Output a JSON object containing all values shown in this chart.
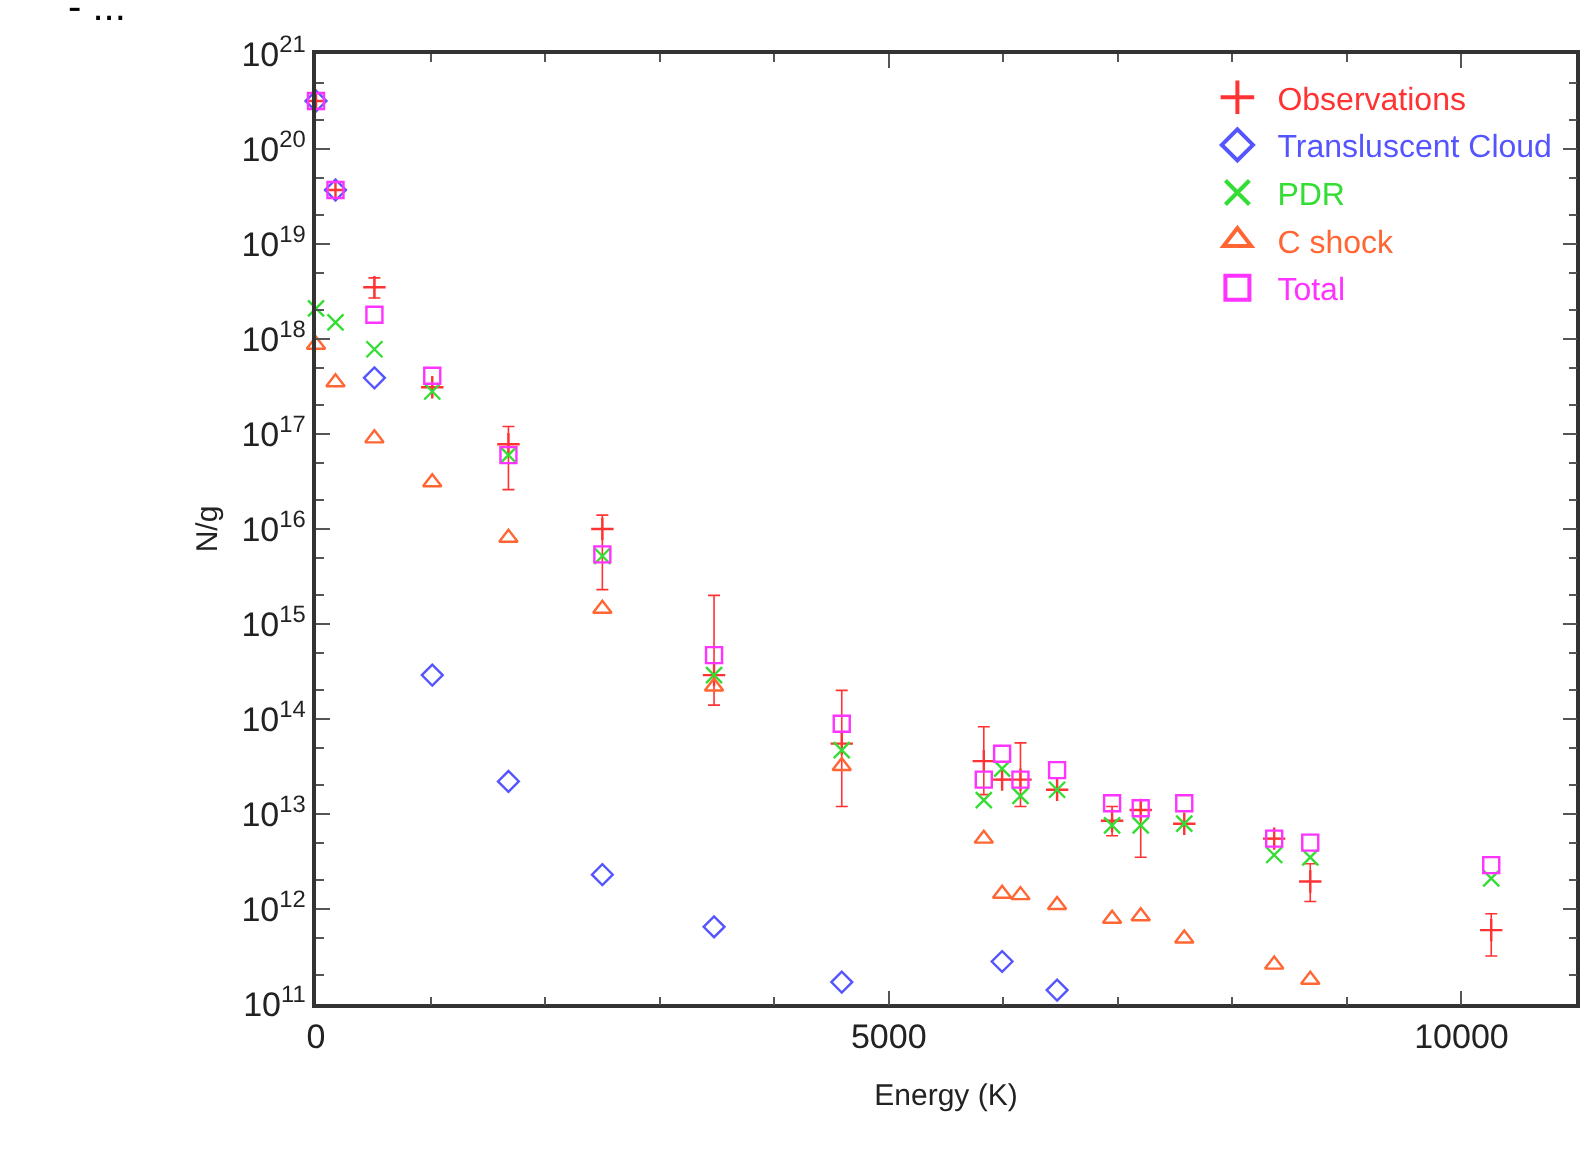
{
  "chart_data": {
    "type": "scatter",
    "xlabel": "Energy (K)",
    "ylabel": "N/g",
    "x": [
      0,
      170,
      510,
      1015,
      1680,
      2500,
      3475,
      4590,
      5830,
      5990,
      6150,
      6470,
      6950,
      7200,
      7580,
      8365,
      8680,
      10260
    ],
    "series": [
      {
        "name": "Observations",
        "color": "#ff3333",
        "marker": "cross",
        "values": [
          3.2e+20,
          3.7e+19,
          3.5e+18,
          3.1e+17,
          7.8e+16,
          1e+16,
          290000000000000.0,
          55000000000000.0,
          36000000000000.0,
          23000000000000.0,
          23000000000000.0,
          18000000000000.0,
          8500000000000.0,
          11000000000000.0,
          7900000000000.0,
          5500000000000.0,
          1950000000000.0,
          600000000000.0
        ],
        "errors": [
          null,
          null,
          [
            2.7e+18,
            4.4e+18
          ],
          null,
          [
            2.6e+16,
            1.2e+17
          ],
          [
            2300000000000000.0,
            1.4e+16
          ],
          [
            140000000000000.0,
            2000000000000000.0
          ],
          [
            12000000000000.0,
            200000000000000.0
          ],
          [
            16000000000000.0,
            83000000000000.0
          ],
          null,
          [
            12000000000000.0,
            56000000000000.0
          ],
          null,
          [
            5900000000000.0,
            12000000000000.0
          ],
          [
            3500000000000.0,
            14000000000000.0
          ],
          null,
          null,
          [
            1200000000000.0,
            3000000000000.0
          ],
          [
            320000000000.0,
            890000000000.0
          ]
        ]
      },
      {
        "name": "Transluscent Cloud",
        "color": "#5555ff",
        "marker": "diamond",
        "values": [
          3.2e+20,
          3.7e+19,
          3.9e+17,
          290000000000000.0,
          22000000000000.0,
          2300000000000.0,
          650000000000.0,
          170000000000.0,
          null,
          280000000000.0,
          null,
          140000000000.0,
          null,
          null,
          null,
          null,
          null,
          null
        ]
      },
      {
        "name": "PDR",
        "color": "#33dd33",
        "marker": "cross_x",
        "values": [
          2.1e+18,
          1.5e+18,
          7.8e+17,
          2.8e+17,
          6e+16,
          5200000000000000.0,
          290000000000000.0,
          47000000000000.0,
          14000000000000.0,
          30000000000000.0,
          15500000000000.0,
          18000000000000.0,
          7600000000000.0,
          7600000000000.0,
          7900000000000.0,
          3700000000000.0,
          3500000000000.0,
          2100000000000.0
        ]
      },
      {
        "name": "C shock",
        "color": "#ff6633",
        "marker": "triangle",
        "values": [
          8.7e+17,
          3.5e+17,
          9e+16,
          3.1e+16,
          8100000000000000.0,
          1450000000000000.0,
          220000000000000.0,
          32000000000000.0,
          5500000000000.0,
          1450000000000.0,
          1400000000000.0,
          1100000000000.0,
          790000000000.0,
          840000000000.0,
          490000000000.0,
          260000000000.0,
          180000000000.0,
          null
        ]
      },
      {
        "name": "Total",
        "color": "#ff33ff",
        "marker": "square",
        "values": [
          3.2e+20,
          3.7e+19,
          1.8e+18,
          4.1e+17,
          6e+16,
          5400000000000000.0,
          470000000000000.0,
          89000000000000.0,
          23000000000000.0,
          43000000000000.0,
          23000000000000.0,
          29000000000000.0,
          13000000000000.0,
          11500000000000.0,
          13000000000000.0,
          5500000000000.0,
          5000000000000.0,
          2900000000000.0
        ]
      }
    ],
    "log": "y",
    "xlim": [
      0,
      11000
    ],
    "xticks": [
      0,
      5000,
      10000
    ],
    "ylim": [
      100000000000.0,
      1e+21
    ],
    "yticks": [
      {
        "value": 100000000000.0,
        "label": "10$^{11}$"
      },
      {
        "value": 1000000000000.0,
        "label": "10$^{12}$"
      },
      {
        "value": 10000000000000.0,
        "label": "10$^{13}$"
      },
      {
        "value": 100000000000000.0,
        "label": "10$^{14}$"
      },
      {
        "value": 1000000000000000.0,
        "label": "10$^{15}$"
      },
      {
        "value": 1e+16,
        "label": "10$^{16}$"
      },
      {
        "value": 1e+17,
        "label": "10$^{17}$"
      },
      {
        "value": 1e+18,
        "label": "10$^{18}$"
      },
      {
        "value": 1e+19,
        "label": "10$^{19}$"
      },
      {
        "value": 1e+20,
        "label": "10$^{20}$"
      },
      {
        "value": 1e+21,
        "label": "10$^{21}$"
      }
    ],
    "legend": "top right",
    "annotations": [
      "- ..."
    ]
  }
}
